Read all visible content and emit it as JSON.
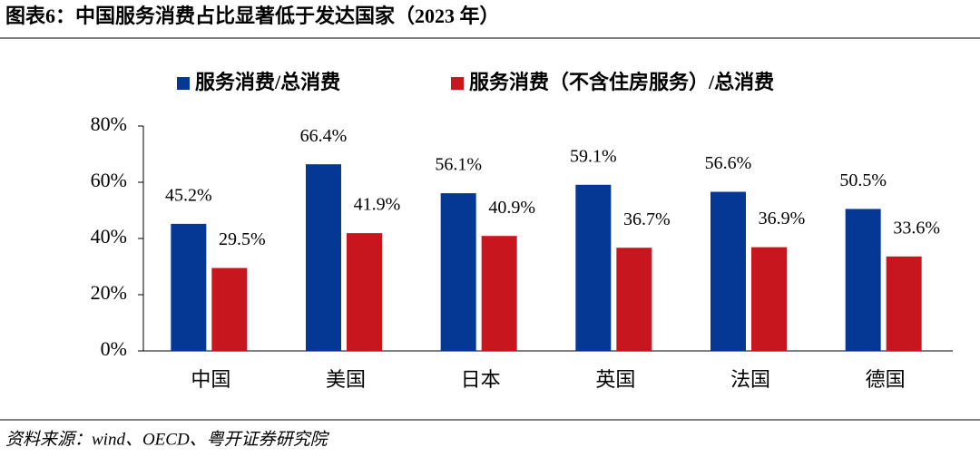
{
  "chart_data": {
    "type": "bar",
    "title": "图表6：中国服务消费占比显著低于发达国家（2023 年）",
    "source": "资料来源：wind、OECD、粤开证券研究院",
    "categories": [
      "中国",
      "美国",
      "日本",
      "英国",
      "法国",
      "德国"
    ],
    "series": [
      {
        "name": "服务消费/总消费",
        "color": "#043894",
        "values": [
          45.2,
          66.4,
          56.1,
          59.1,
          56.6,
          50.5
        ],
        "value_labels": [
          "45.2%",
          "66.4%",
          "56.1%",
          "59.1%",
          "56.6%",
          "50.5%"
        ]
      },
      {
        "name": "服务消费（不含住房服务）/总消费",
        "color": "#c8161e",
        "values": [
          29.5,
          41.9,
          40.9,
          36.7,
          36.9,
          33.6
        ],
        "value_labels": [
          "29.5%",
          "41.9%",
          "40.9%",
          "36.7%",
          "36.9%",
          "33.6%"
        ]
      }
    ],
    "ylim": [
      0,
      80
    ],
    "yticks": [
      {
        "value": 0,
        "label": "0%"
      },
      {
        "value": 20,
        "label": "20%"
      },
      {
        "value": 40,
        "label": "40%"
      },
      {
        "value": 60,
        "label": "60%"
      },
      {
        "value": 80,
        "label": "80%"
      }
    ],
    "legend": "top"
  }
}
